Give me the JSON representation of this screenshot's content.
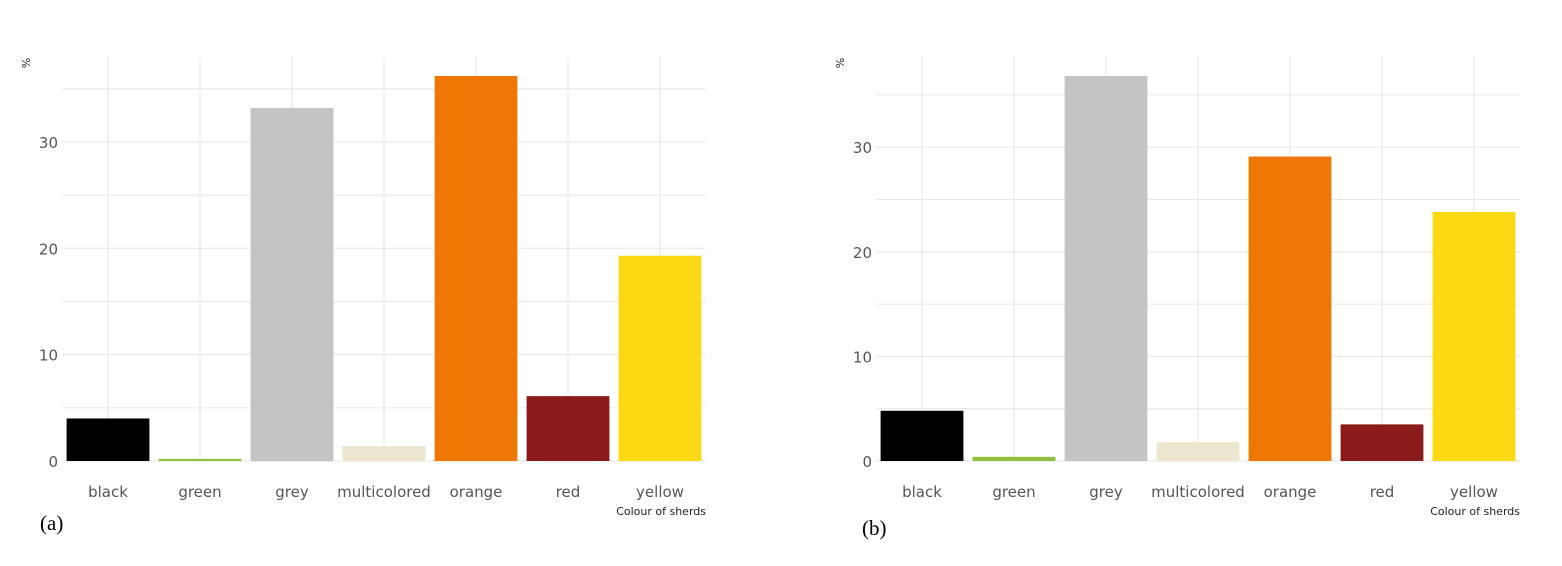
{
  "chart_data": [
    {
      "type": "bar",
      "panel_label": "(a)",
      "ylabel": "%",
      "xlabel": "Colour of sherds",
      "categories": [
        "black",
        "green",
        "grey",
        "multicolored",
        "orange",
        "red",
        "yellow"
      ],
      "values": [
        4.0,
        0.2,
        33.2,
        1.4,
        36.2,
        6.1,
        19.3
      ],
      "colors": [
        "#000000",
        "#8fc23f",
        "#c4c4c3",
        "#ede6cf",
        "#ee7603",
        "#8b1a1a",
        "#fdd914"
      ],
      "ylim": [
        0,
        36.2
      ],
      "yticks": [
        0,
        10,
        20,
        30
      ],
      "grid": true
    },
    {
      "type": "bar",
      "panel_label": "(b)",
      "ylabel": "%",
      "xlabel": "Colour of sherds",
      "categories": [
        "black",
        "green",
        "grey",
        "multicolored",
        "orange",
        "red",
        "yellow"
      ],
      "values": [
        4.8,
        0.4,
        36.8,
        1.8,
        29.1,
        3.5,
        23.8
      ],
      "colors": [
        "#000000",
        "#8fc23f",
        "#c4c4c3",
        "#ede6cf",
        "#ee7603",
        "#8b1a1a",
        "#fdd914"
      ],
      "ylim": [
        0,
        36.8
      ],
      "yticks": [
        0,
        10,
        20,
        30
      ],
      "grid": true
    }
  ]
}
